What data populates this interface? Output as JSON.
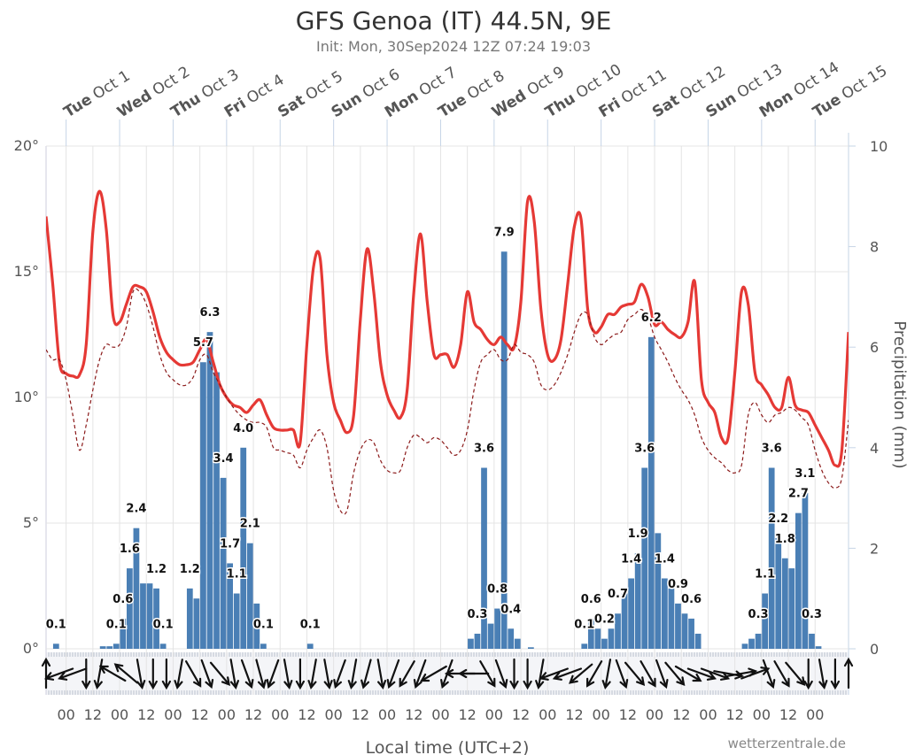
{
  "chart_data": {
    "type": "meteogram",
    "title": "GFS Genoa (IT) 44.5N, 9E",
    "subtitle": "Init: Mon, 30Sep2024 12Z 07:24 19:03",
    "xlabel": "Local time (UTC+2)",
    "y2label": "Precipitation (mm)",
    "credit": "wetterzentrale.de",
    "grid": true,
    "x": [
      "2024-09-30T15:00",
      "2024-09-30T18:00",
      "2024-09-30T21:00",
      "2024-10-01T00:00",
      "2024-10-01T03:00",
      "2024-10-01T06:00",
      "2024-10-01T09:00",
      "2024-10-01T12:00",
      "2024-10-01T15:00",
      "2024-10-01T18:00",
      "2024-10-01T21:00",
      "2024-10-02T00:00",
      "2024-10-02T03:00",
      "2024-10-02T06:00",
      "2024-10-02T09:00",
      "2024-10-02T12:00",
      "2024-10-02T15:00",
      "2024-10-02T18:00",
      "2024-10-02T21:00",
      "2024-10-03T00:00",
      "2024-10-03T03:00",
      "2024-10-03T06:00",
      "2024-10-03T09:00",
      "2024-10-03T12:00",
      "2024-10-03T15:00",
      "2024-10-03T18:00",
      "2024-10-03T21:00",
      "2024-10-04T00:00",
      "2024-10-04T03:00",
      "2024-10-04T06:00",
      "2024-10-04T09:00",
      "2024-10-04T12:00",
      "2024-10-04T15:00",
      "2024-10-04T18:00",
      "2024-10-04T21:00",
      "2024-10-05T00:00",
      "2024-10-05T03:00",
      "2024-10-05T06:00",
      "2024-10-05T09:00",
      "2024-10-05T12:00",
      "2024-10-05T15:00",
      "2024-10-05T18:00",
      "2024-10-05T21:00",
      "2024-10-06T00:00",
      "2024-10-06T03:00",
      "2024-10-06T06:00",
      "2024-10-06T09:00",
      "2024-10-06T12:00",
      "2024-10-06T15:00",
      "2024-10-06T18:00",
      "2024-10-06T21:00",
      "2024-10-07T00:00",
      "2024-10-07T03:00",
      "2024-10-07T06:00",
      "2024-10-07T09:00",
      "2024-10-07T12:00",
      "2024-10-07T15:00",
      "2024-10-07T18:00",
      "2024-10-07T21:00",
      "2024-10-08T00:00",
      "2024-10-08T03:00",
      "2024-10-08T06:00",
      "2024-10-08T09:00",
      "2024-10-08T12:00",
      "2024-10-08T15:00",
      "2024-10-08T18:00",
      "2024-10-08T21:00",
      "2024-10-09T00:00",
      "2024-10-09T03:00",
      "2024-10-09T06:00",
      "2024-10-09T09:00",
      "2024-10-09T12:00",
      "2024-10-09T15:00",
      "2024-10-09T18:00",
      "2024-10-09T21:00",
      "2024-10-10T00:00",
      "2024-10-10T03:00",
      "2024-10-10T06:00",
      "2024-10-10T09:00",
      "2024-10-10T12:00",
      "2024-10-10T15:00",
      "2024-10-10T18:00",
      "2024-10-10T21:00",
      "2024-10-11T00:00",
      "2024-10-11T03:00",
      "2024-10-11T06:00",
      "2024-10-11T09:00",
      "2024-10-11T12:00",
      "2024-10-11T15:00",
      "2024-10-11T18:00",
      "2024-10-11T21:00",
      "2024-10-12T00:00",
      "2024-10-12T03:00",
      "2024-10-12T06:00",
      "2024-10-12T09:00",
      "2024-10-12T12:00",
      "2024-10-12T15:00",
      "2024-10-12T18:00",
      "2024-10-12T21:00",
      "2024-10-13T00:00",
      "2024-10-13T03:00",
      "2024-10-13T06:00",
      "2024-10-13T09:00",
      "2024-10-13T12:00",
      "2024-10-13T15:00",
      "2024-10-13T18:00",
      "2024-10-13T21:00",
      "2024-10-14T00:00",
      "2024-10-14T03:00",
      "2024-10-14T06:00",
      "2024-10-14T09:00",
      "2024-10-14T12:00",
      "2024-10-14T15:00",
      "2024-10-14T18:00",
      "2024-10-14T21:00",
      "2024-10-15T00:00",
      "2024-10-15T03:00",
      "2024-10-15T06:00",
      "2024-10-15T09:00",
      "2024-10-15T12:00",
      "2024-10-15T15:00"
    ],
    "xlim": [
      "2024-09-30T15:00",
      "2024-10-15T15:00"
    ],
    "xticks": [
      {
        "value": "2024-10-01T00:00",
        "label": "00"
      },
      {
        "value": "2024-10-01T12:00",
        "label": "12"
      },
      {
        "value": "2024-10-02T00:00",
        "label": "00"
      },
      {
        "value": "2024-10-02T12:00",
        "label": "12"
      },
      {
        "value": "2024-10-03T00:00",
        "label": "00"
      },
      {
        "value": "2024-10-03T12:00",
        "label": "12"
      },
      {
        "value": "2024-10-04T00:00",
        "label": "00"
      },
      {
        "value": "2024-10-04T12:00",
        "label": "12"
      },
      {
        "value": "2024-10-05T00:00",
        "label": "00"
      },
      {
        "value": "2024-10-05T12:00",
        "label": "12"
      },
      {
        "value": "2024-10-06T00:00",
        "label": "00"
      },
      {
        "value": "2024-10-06T12:00",
        "label": "12"
      },
      {
        "value": "2024-10-07T00:00",
        "label": "00"
      },
      {
        "value": "2024-10-07T12:00",
        "label": "12"
      },
      {
        "value": "2024-10-08T00:00",
        "label": "00"
      },
      {
        "value": "2024-10-08T12:00",
        "label": "12"
      },
      {
        "value": "2024-10-09T00:00",
        "label": "00"
      },
      {
        "value": "2024-10-09T12:00",
        "label": "12"
      },
      {
        "value": "2024-10-10T00:00",
        "label": "00"
      },
      {
        "value": "2024-10-10T12:00",
        "label": "12"
      },
      {
        "value": "2024-10-11T00:00",
        "label": "00"
      },
      {
        "value": "2024-10-11T12:00",
        "label": "12"
      },
      {
        "value": "2024-10-12T00:00",
        "label": "00"
      },
      {
        "value": "2024-10-12T12:00",
        "label": "12"
      },
      {
        "value": "2024-10-13T00:00",
        "label": "00"
      },
      {
        "value": "2024-10-13T12:00",
        "label": "12"
      },
      {
        "value": "2024-10-14T00:00",
        "label": "00"
      },
      {
        "value": "2024-10-14T12:00",
        "label": "12"
      },
      {
        "value": "2024-10-15T00:00",
        "label": "00"
      }
    ],
    "top_labels": [
      {
        "value": "2024-10-01T00:00",
        "weekday": "Tue",
        "date": "Oct 1"
      },
      {
        "value": "2024-10-02T00:00",
        "weekday": "Wed",
        "date": "Oct 2"
      },
      {
        "value": "2024-10-03T00:00",
        "weekday": "Thu",
        "date": "Oct 3"
      },
      {
        "value": "2024-10-04T00:00",
        "weekday": "Fri",
        "date": "Oct 4"
      },
      {
        "value": "2024-10-05T00:00",
        "weekday": "Sat",
        "date": "Oct 5"
      },
      {
        "value": "2024-10-06T00:00",
        "weekday": "Sun",
        "date": "Oct 6"
      },
      {
        "value": "2024-10-07T00:00",
        "weekday": "Mon",
        "date": "Oct 7"
      },
      {
        "value": "2024-10-08T00:00",
        "weekday": "Tue",
        "date": "Oct 8"
      },
      {
        "value": "2024-10-09T00:00",
        "weekday": "Wed",
        "date": "Oct 9"
      },
      {
        "value": "2024-10-10T00:00",
        "weekday": "Thu",
        "date": "Oct 10"
      },
      {
        "value": "2024-10-11T00:00",
        "weekday": "Fri",
        "date": "Oct 11"
      },
      {
        "value": "2024-10-12T00:00",
        "weekday": "Sat",
        "date": "Oct 12"
      },
      {
        "value": "2024-10-13T00:00",
        "weekday": "Sun",
        "date": "Oct 13"
      },
      {
        "value": "2024-10-14T00:00",
        "weekday": "Mon",
        "date": "Oct 14"
      },
      {
        "value": "2024-10-15T00:00",
        "weekday": "Tue",
        "date": "Oct 15"
      }
    ],
    "ylim": [
      0,
      20
    ],
    "yticks": [
      {
        "value": 0,
        "label": "0°"
      },
      {
        "value": 5,
        "label": "5°"
      },
      {
        "value": 10,
        "label": "10°"
      },
      {
        "value": 15,
        "label": "15°"
      },
      {
        "value": 20,
        "label": "20°"
      }
    ],
    "y2lim": [
      0,
      10
    ],
    "y2ticks": [
      0,
      2,
      4,
      6,
      8,
      10
    ],
    "series": [
      {
        "color": "#e53935",
        "width": 3.2,
        "values": [
          17.2,
          14.5,
          11.4,
          10.95,
          10.85,
          10.9,
          12.1,
          16.6,
          18.2,
          16.7,
          13.3,
          13.0,
          13.7,
          14.4,
          14.4,
          14.2,
          13.4,
          12.4,
          11.8,
          11.5,
          11.3,
          11.3,
          11.4,
          11.9,
          12.3,
          11.4,
          10.5,
          10.0,
          9.7,
          9.6,
          9.4,
          9.7,
          9.9,
          9.3,
          8.8,
          8.7,
          8.7,
          8.7,
          8.2,
          12.1,
          15.2,
          15.5,
          11.7,
          9.8,
          9.1,
          8.6,
          9.3,
          13.1,
          15.9,
          14.2,
          11.4,
          10.1,
          9.5,
          9.2,
          10.3,
          14.2,
          16.5,
          13.8,
          11.7,
          11.7,
          11.7,
          11.2,
          12.1,
          14.2,
          13.0,
          12.7,
          12.3,
          12.1,
          12.4,
          12.1,
          12.0,
          13.8,
          17.8,
          17.0,
          13.5,
          11.7,
          11.5,
          12.3,
          14.5,
          16.8,
          17.1,
          13.5,
          12.6,
          12.8,
          13.3,
          13.3,
          13.6,
          13.7,
          13.8,
          14.5,
          14.0,
          12.9,
          13.0,
          12.7,
          12.5,
          12.4,
          13.0,
          14.6,
          10.7,
          9.8,
          9.4,
          8.4,
          8.4,
          11.0,
          14.2,
          13.7,
          11.0,
          10.5,
          10.1,
          9.6,
          9.6,
          10.8,
          9.7,
          9.5,
          9.4,
          8.9,
          8.4,
          7.9,
          7.3,
          7.9,
          12.6
        ]
      },
      {
        "color": "#8b1a1a",
        "width": 1.2,
        "dashed": true,
        "values": [
          11.9,
          11.5,
          11.5,
          10.7,
          9.3,
          7.9,
          8.9,
          10.3,
          11.5,
          12.1,
          12.0,
          12.1,
          12.8,
          14.2,
          14.2,
          13.7,
          12.8,
          11.7,
          11.0,
          10.7,
          10.5,
          10.5,
          10.8,
          11.5,
          11.7,
          11.0,
          10.5,
          10.0,
          9.6,
          9.3,
          9.1,
          9.0,
          9.0,
          8.8,
          8.0,
          7.9,
          7.8,
          7.7,
          7.2,
          7.9,
          8.4,
          8.7,
          8.0,
          6.3,
          5.5,
          5.5,
          7.0,
          7.9,
          8.3,
          8.2,
          7.5,
          7.1,
          7.0,
          7.1,
          8.0,
          8.5,
          8.4,
          8.2,
          8.4,
          8.3,
          8.0,
          7.7,
          7.9,
          8.7,
          10.3,
          11.4,
          11.7,
          11.9,
          11.5,
          11.5,
          12.1,
          11.8,
          11.7,
          11.4,
          10.5,
          10.3,
          10.5,
          11.0,
          11.7,
          12.6,
          13.3,
          13.3,
          12.4,
          12.1,
          12.3,
          12.5,
          12.6,
          13.1,
          13.3,
          13.5,
          13.2,
          12.4,
          11.9,
          11.4,
          10.8,
          10.3,
          9.9,
          9.3,
          8.4,
          7.9,
          7.6,
          7.4,
          7.1,
          7.0,
          7.3,
          9.3,
          9.8,
          9.3,
          9.0,
          9.3,
          9.4,
          9.6,
          9.5,
          9.2,
          8.9,
          7.9,
          7.1,
          6.6,
          6.4,
          6.8,
          9.1
        ]
      }
    ],
    "precipitation": {
      "color": "#4a7fb5",
      "axis": "y2",
      "values": [
        0,
        0,
        0.1,
        0,
        0,
        0,
        0,
        0,
        0,
        0.05,
        0.05,
        0.1,
        0.6,
        1.6,
        2.4,
        1.3,
        1.3,
        1.2,
        0.1,
        0,
        0,
        0,
        1.2,
        1.0,
        5.7,
        6.3,
        5.5,
        3.4,
        1.7,
        1.1,
        4.0,
        2.1,
        0.9,
        0.1,
        0,
        0,
        0,
        0,
        0,
        0,
        0.1,
        0,
        0,
        0,
        0,
        0,
        0,
        0,
        0,
        0,
        0,
        0,
        0,
        0,
        0,
        0,
        0,
        0,
        0,
        0,
        0,
        0,
        0,
        0,
        0.2,
        0.3,
        3.6,
        0.5,
        0.8,
        7.9,
        0.4,
        0.2,
        0,
        0.03,
        0,
        0,
        0,
        0,
        0,
        0,
        0,
        0.1,
        0.6,
        0.4,
        0.2,
        0.4,
        0.7,
        1.1,
        1.4,
        1.9,
        3.6,
        6.2,
        2.3,
        1.4,
        1.2,
        0.9,
        0.7,
        0.6,
        0.3,
        0,
        0,
        0,
        0,
        0,
        0,
        0.1,
        0.2,
        0.3,
        1.1,
        3.6,
        2.2,
        1.8,
        1.6,
        2.7,
        3.1,
        0.3,
        0.05,
        0,
        0,
        0,
        0
      ],
      "value_labels": [
        null,
        null,
        "0.1",
        null,
        null,
        null,
        null,
        null,
        null,
        null,
        null,
        "0.1",
        "0.6",
        "1.6",
        "2.4",
        null,
        null,
        "1.2",
        "0.1",
        null,
        null,
        null,
        "1.2",
        null,
        "5.7",
        "6.3",
        null,
        "3.4",
        "1.7",
        "1.1",
        "4.0",
        "2.1",
        null,
        "0.1",
        null,
        null,
        null,
        null,
        null,
        null,
        "0.1",
        null,
        null,
        null,
        null,
        null,
        null,
        null,
        null,
        null,
        null,
        null,
        null,
        null,
        null,
        null,
        null,
        null,
        null,
        null,
        null,
        null,
        null,
        null,
        null,
        "0.3",
        "3.6",
        null,
        "0.8",
        "7.9",
        "0.4",
        null,
        null,
        null,
        null,
        null,
        null,
        null,
        null,
        null,
        null,
        "0.1",
        "0.6",
        null,
        "0.2",
        null,
        "0.7",
        null,
        "1.4",
        "1.9",
        "3.6",
        "6.2",
        null,
        "1.4",
        null,
        "0.9",
        null,
        "0.6",
        null,
        null,
        null,
        null,
        null,
        null,
        null,
        null,
        null,
        "0.3",
        "1.1",
        "3.6",
        "2.2",
        "1.8",
        null,
        "2.7",
        "3.1",
        "0.3",
        null,
        null,
        null,
        null,
        null
      ]
    },
    "wind_direction": [
      180,
      null,
      70,
      null,
      70,
      null,
      0,
      null,
      10,
      null,
      120,
      null,
      130,
      null,
      350,
      null,
      0,
      null,
      0,
      null,
      10,
      null,
      330,
      null,
      340,
      null,
      320,
      null,
      350,
      null,
      340,
      null,
      345,
      null,
      20,
      null,
      350,
      null,
      0,
      null,
      10,
      null,
      350,
      null,
      20,
      null,
      10,
      null,
      15,
      null,
      350,
      null,
      20,
      null,
      30,
      null,
      20,
      null,
      60,
      null,
      20,
      null,
      90,
      null,
      90,
      null,
      330,
      null,
      340,
      null,
      0,
      null,
      0,
      null,
      10,
      null,
      70,
      null,
      70,
      null,
      50,
      null,
      30,
      null,
      10,
      null,
      340,
      null,
      320,
      null,
      330,
      null,
      340,
      null,
      320,
      null,
      300,
      null,
      290,
      null,
      290,
      null,
      280,
      null,
      260,
      null,
      250,
      null,
      340,
      null,
      330,
      null,
      320,
      null,
      0,
      null,
      350,
      null,
      0,
      null,
      180
    ]
  }
}
